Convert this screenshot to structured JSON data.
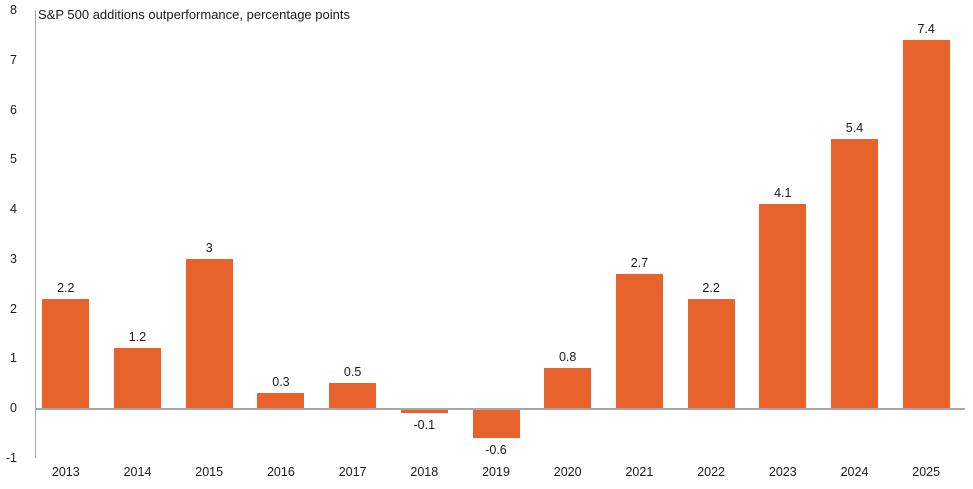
{
  "chart_data": {
    "type": "bar",
    "title": "S&P 500 additions outperformance, percentage points",
    "categories": [
      "2013",
      "2014",
      "2015",
      "2016",
      "2017",
      "2018",
      "2019",
      "2020",
      "2021",
      "2022",
      "2023",
      "2024",
      "2025"
    ],
    "values": [
      2.2,
      1.2,
      3,
      0.3,
      0.5,
      -0.1,
      -0.6,
      0.8,
      2.7,
      2.2,
      4.1,
      5.4,
      7.4
    ],
    "value_labels": [
      "2.2",
      "1.2",
      "3",
      "0.3",
      "0.5",
      "-0.1",
      "-0.6",
      "0.8",
      "2.7",
      "2.2",
      "4.1",
      "5.4",
      "7.4"
    ],
    "xlabel": "",
    "ylabel": "",
    "ylim": [
      -1,
      8
    ],
    "yticks": [
      8,
      7,
      6,
      5,
      4,
      3,
      2,
      1,
      0,
      -1
    ],
    "grid": false,
    "legend": false,
    "colors": {
      "bar": "#e8632c",
      "axis": "#a6a6a6",
      "text": "#1a1a1a",
      "background": "#ffffff"
    }
  }
}
